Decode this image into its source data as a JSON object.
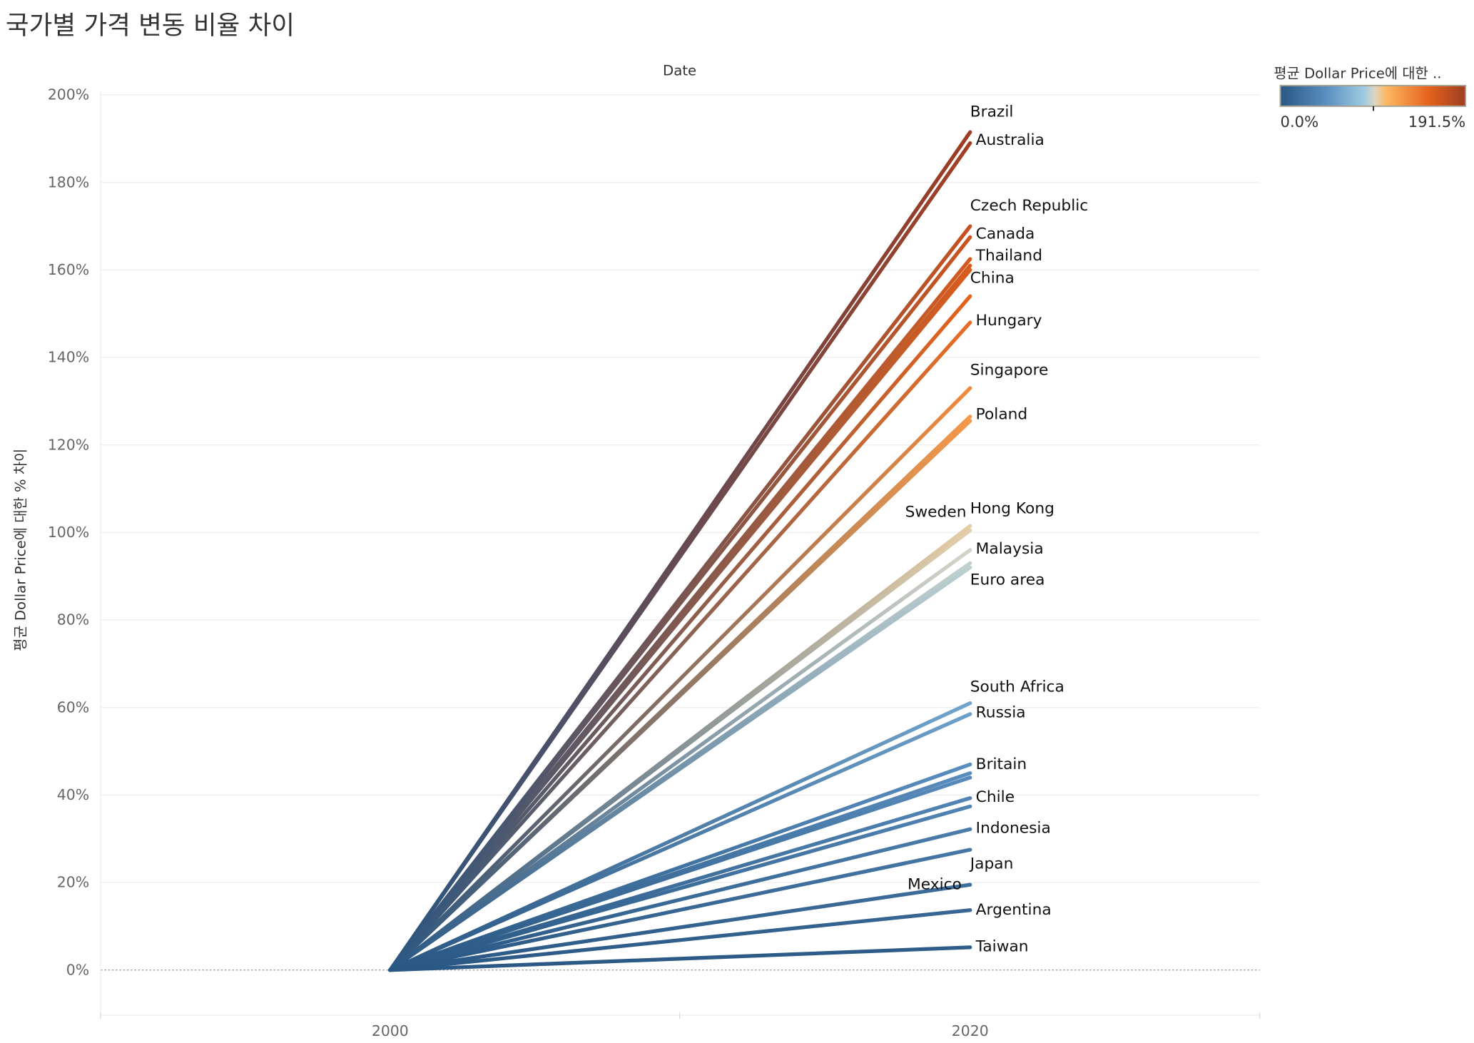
{
  "title": "국가별 가격 변동 비율 차이",
  "colors": {
    "low": "#2a5783",
    "mid": "#dcd6c4",
    "high": "#9e3d22"
  },
  "legend": {
    "title": "평균 Dollar Price에 대한 ..",
    "min_label": "0.0%",
    "max_label": "191.5%",
    "min": 0,
    "max": 191.5
  },
  "chart_data": {
    "type": "line",
    "title": "국가별 가격 변동 비율 차이",
    "xlabel": "Date",
    "ylabel": "평균 Dollar Price에 대한 % 차이",
    "x": [
      2000,
      2020
    ],
    "x_tick_labels": [
      "2000",
      "2020"
    ],
    "y_tick_labels": [
      "0%",
      "20%",
      "40%",
      "60%",
      "80%",
      "100%",
      "120%",
      "140%",
      "160%",
      "180%",
      "200%"
    ],
    "ylim": [
      -10,
      200
    ],
    "grid": true,
    "color_encoding": "value at 2020 (diverging blue-orange)",
    "series": [
      {
        "name": "Brazil",
        "values": [
          0,
          191.5
        ]
      },
      {
        "name": "Australia",
        "values": [
          0,
          189
        ]
      },
      {
        "name": "Czech Republic",
        "values": [
          0,
          170
        ]
      },
      {
        "name": "Canada",
        "values": [
          0,
          167.5
        ]
      },
      {
        "name": "Thailand",
        "values": [
          0,
          162.5
        ]
      },
      {
        "name": "China",
        "values": [
          0,
          161
        ]
      },
      {
        "name": "",
        "values": [
          0,
          160
        ]
      },
      {
        "name": "",
        "values": [
          0,
          154
        ]
      },
      {
        "name": "Hungary",
        "values": [
          0,
          148
        ]
      },
      {
        "name": "Singapore",
        "values": [
          0,
          133
        ]
      },
      {
        "name": "Poland",
        "values": [
          0,
          126.5
        ]
      },
      {
        "name": "",
        "values": [
          0,
          125.5
        ]
      },
      {
        "name": "Sweden",
        "values": [
          0,
          101.5
        ]
      },
      {
        "name": "Hong Kong",
        "values": [
          0,
          100.5
        ]
      },
      {
        "name": "Malaysia",
        "values": [
          0,
          96
        ]
      },
      {
        "name": "Euro area",
        "values": [
          0,
          93
        ]
      },
      {
        "name": "",
        "values": [
          0,
          92
        ]
      },
      {
        "name": "South Africa",
        "values": [
          0,
          61
        ]
      },
      {
        "name": "Russia",
        "values": [
          0,
          58.5
        ]
      },
      {
        "name": "Britain",
        "values": [
          0,
          47
        ]
      },
      {
        "name": "",
        "values": [
          0,
          45
        ]
      },
      {
        "name": "",
        "values": [
          0,
          44
        ]
      },
      {
        "name": "Chile",
        "values": [
          0,
          39.3
        ]
      },
      {
        "name": "",
        "values": [
          0,
          37.4
        ]
      },
      {
        "name": "Indonesia",
        "values": [
          0,
          32.2
        ]
      },
      {
        "name": "Japan",
        "values": [
          0,
          27.5
        ]
      },
      {
        "name": "Mexico",
        "values": [
          0,
          19.5
        ]
      },
      {
        "name": "Argentina",
        "values": [
          0,
          13.7
        ]
      },
      {
        "name": "Taiwan",
        "values": [
          0,
          5.2
        ]
      }
    ]
  }
}
